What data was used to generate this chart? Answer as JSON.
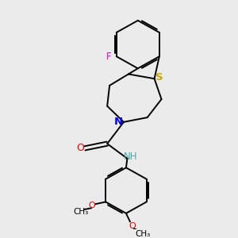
{
  "bg_color": "#ebebeb",
  "bond_color": "#000000",
  "S_color": "#ccaa00",
  "N_color": "#0000ee",
  "O_color": "#ee0000",
  "F_color": "#ee00ee",
  "NH_color": "#44aaaa",
  "text_color": "#000000",
  "figsize": [
    3.0,
    3.0
  ],
  "dpi": 100,
  "xlim": [
    0,
    10
  ],
  "ylim": [
    0,
    10
  ]
}
